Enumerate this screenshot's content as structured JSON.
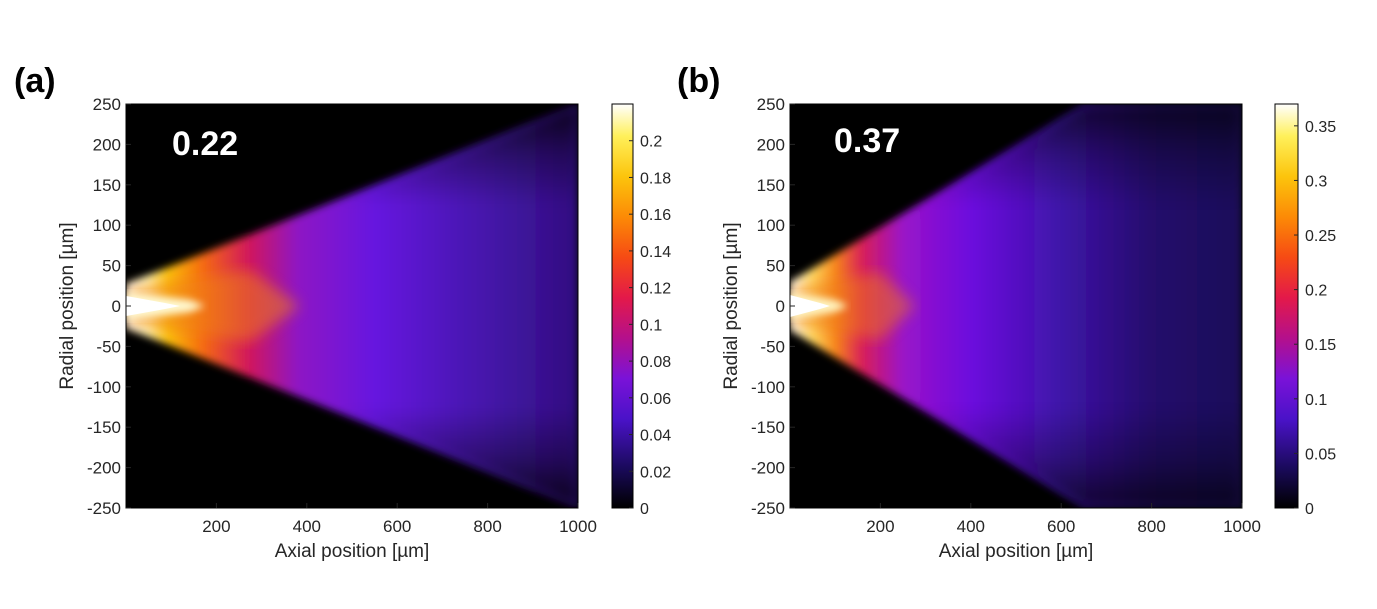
{
  "chart_data": [
    {
      "type": "heatmap",
      "panel_label": "(a)",
      "annotation": "0.22",
      "xlabel": "Axial position [µm]",
      "ylabel": "Radial position [µm]",
      "xlim": [
        0,
        1000
      ],
      "ylim": [
        -250,
        250
      ],
      "xticks": [
        200,
        400,
        600,
        800,
        1000
      ],
      "yticks": [
        250,
        200,
        150,
        100,
        50,
        0,
        -50,
        -100,
        -150,
        -200,
        -250
      ],
      "colorbar": {
        "range": [
          0,
          0.22
        ],
        "ticks": [
          "0.2",
          "0.18",
          "0.16",
          "0.14",
          "0.12",
          "0.1",
          "0.08",
          "0.06",
          "0.04",
          "0.02",
          "0"
        ],
        "tick_values": [
          0.2,
          0.18,
          0.16,
          0.14,
          0.12,
          0.1,
          0.08,
          0.06,
          0.04,
          0.02,
          0
        ]
      },
      "colormap": "black-blue-purple-red-orange-yellow-white",
      "beam": {
        "source_radius_um": 27,
        "edge_radius_at_1000um": 250,
        "white_tip_um": 130
      }
    },
    {
      "type": "heatmap",
      "panel_label": "(b)",
      "annotation": "0.37",
      "xlabel": "Axial position [µm]",
      "ylabel": "Radial position [µm]",
      "xlim": [
        0,
        1000
      ],
      "ylim": [
        -250,
        250
      ],
      "xticks": [
        200,
        400,
        600,
        800,
        1000
      ],
      "yticks": [
        250,
        200,
        150,
        100,
        50,
        0,
        -50,
        -100,
        -150,
        -200,
        -250
      ],
      "colorbar": {
        "range": [
          0,
          0.37
        ],
        "ticks": [
          "0.35",
          "0.3",
          "0.25",
          "0.2",
          "0.15",
          "0.1",
          "0.05",
          "0"
        ],
        "tick_values": [
          0.35,
          0.3,
          0.25,
          0.2,
          0.15,
          0.1,
          0.05,
          0
        ]
      },
      "colormap": "black-blue-purple-red-orange-yellow-white",
      "beam": {
        "source_radius_um": 30,
        "edge_reaches_250_at_um": 650,
        "white_tip_um": 85
      }
    }
  ]
}
